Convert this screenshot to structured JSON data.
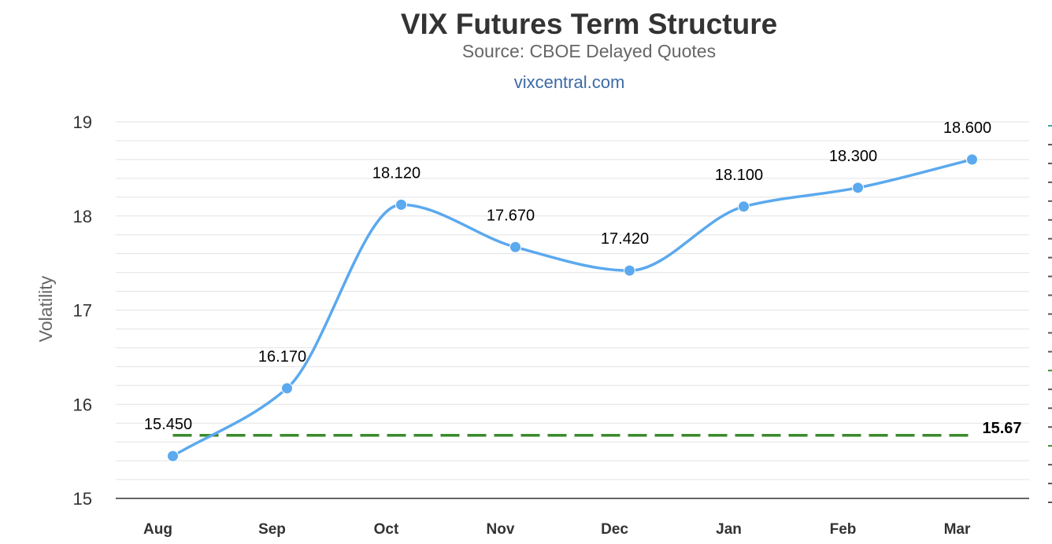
{
  "chart_data": {
    "type": "line",
    "title": "VIX Futures Term Structure",
    "subtitle": "Source: CBOE Delayed Quotes",
    "credit": "vixcentral.com",
    "xlabel": "",
    "ylabel": "Volatility",
    "categories": [
      "Aug",
      "Sep",
      "Oct",
      "Nov",
      "Dec",
      "Jan",
      "Feb",
      "Mar"
    ],
    "series": [
      {
        "values": [
          15.45,
          16.17,
          18.12,
          17.67,
          17.42,
          18.1,
          18.3,
          18.6
        ],
        "labels": [
          "15.450",
          "16.170",
          "18.120",
          "17.670",
          "17.420",
          "18.100",
          "18.300",
          "18.600"
        ],
        "color": "#5ba9ee",
        "smooth": true
      }
    ],
    "reference_line": {
      "value": 15.67,
      "label": "15.67",
      "color": "#3a8a2a",
      "style": "dashed"
    },
    "ylim": [
      15,
      19
    ],
    "yticks": [
      15,
      16,
      17,
      18,
      19
    ],
    "grid": true,
    "legend": "none"
  }
}
